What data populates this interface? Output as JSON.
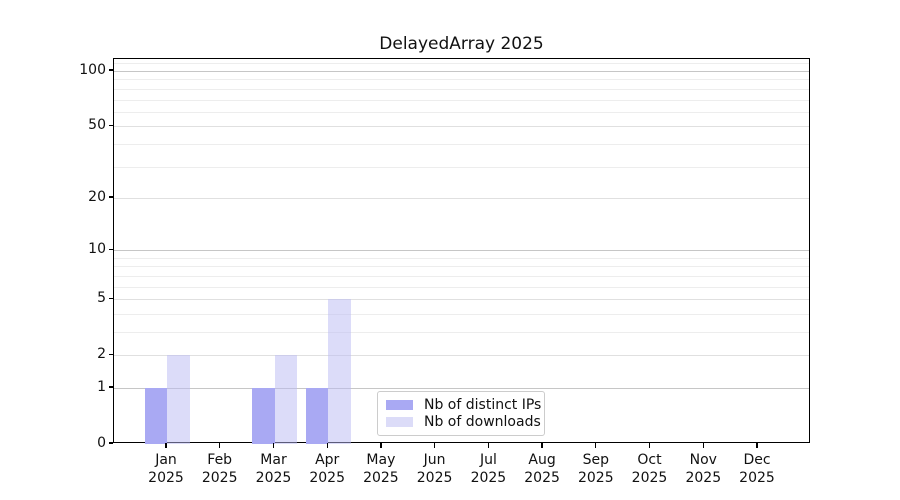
{
  "chart_data": {
    "type": "bar",
    "title": "DelayedArray 2025",
    "categories": [
      "Jan",
      "Feb",
      "Mar",
      "Apr",
      "May",
      "Jun",
      "Jul",
      "Aug",
      "Sep",
      "Oct",
      "Nov",
      "Dec"
    ],
    "year_label": "2025",
    "series": [
      {
        "name": "Nb of distinct IPs",
        "color": "#a9a9f3",
        "values": [
          1,
          0,
          1,
          1,
          0,
          0,
          0,
          0,
          0,
          0,
          0,
          0
        ]
      },
      {
        "name": "Nb of downloads",
        "color": "rgba(186,186,243,0.5)",
        "color_flat": "#dcdcf8",
        "values": [
          2,
          0,
          2,
          5,
          0,
          0,
          0,
          0,
          0,
          0,
          0,
          0
        ]
      }
    ],
    "xlabel": "",
    "ylabel": "",
    "y_axis": {
      "scale": "log10(1+v)",
      "tick_values": [
        0,
        1,
        2,
        5,
        10,
        20,
        50,
        100
      ],
      "tick_labels": [
        "0",
        "1",
        "2",
        "5",
        "10",
        "20",
        "50",
        "100"
      ],
      "minor_tick_values": [
        3,
        4,
        6,
        7,
        8,
        9,
        30,
        40,
        60,
        70,
        80,
        90,
        110
      ],
      "range_top": 116
    },
    "grid": true,
    "legend_position": "lower center",
    "legend_entries": [
      "Nb of distinct IPs",
      "Nb of downloads"
    ]
  },
  "colors": {
    "background": "#ffffff",
    "spine": "#000000",
    "text": "#111111",
    "grid_decade": "#c6c6c6",
    "grid_major": "#e0e0e0",
    "grid_minor": "#ededed",
    "legend_border": "#cccccc"
  }
}
